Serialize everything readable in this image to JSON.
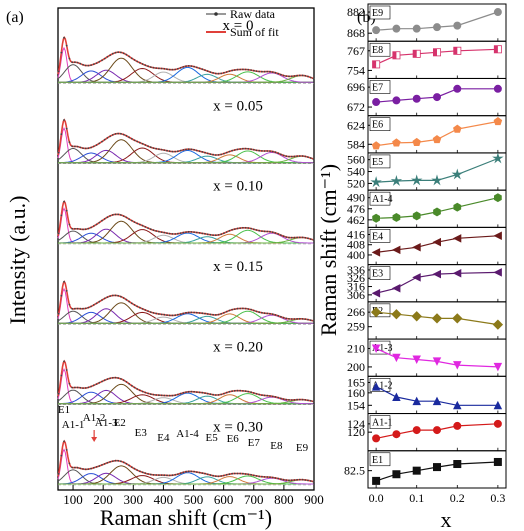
{
  "panel_a": {
    "label": "(a)",
    "ylabel": "Intensity (a.u.)",
    "xlabel": "Raman shift (cm⁻¹)",
    "xlim": [
      50,
      900
    ],
    "xticks": [
      100,
      200,
      300,
      400,
      500,
      600,
      700,
      800,
      900
    ],
    "legend": {
      "raw": "Raw data",
      "fit": "Sum of fit"
    },
    "spectra": [
      {
        "label": "x = 0"
      },
      {
        "label": "x = 0.05"
      },
      {
        "label": "x = 0.10"
      },
      {
        "label": "x = 0.15"
      },
      {
        "label": "x = 0.20"
      },
      {
        "label": "x = 0.30"
      }
    ],
    "mode_labels": [
      {
        "text": "E1",
        "x": 70
      },
      {
        "text": "A1-1",
        "x": 100
      },
      {
        "text": "A1-2",
        "x": 170
      },
      {
        "text": "A1-3",
        "x": 210
      },
      {
        "text": "E2",
        "x": 255
      },
      {
        "text": "E3",
        "x": 325
      },
      {
        "text": "E4",
        "x": 400
      },
      {
        "text": "A1-4",
        "x": 480
      },
      {
        "text": "E5",
        "x": 560
      },
      {
        "text": "E6",
        "x": 630
      },
      {
        "text": "E7",
        "x": 700
      },
      {
        "text": "E8",
        "x": 775
      },
      {
        "text": "E9",
        "x": 860
      }
    ]
  },
  "panel_b": {
    "label": "(b)",
    "ylabel": "Raman shift (cm⁻¹)",
    "xlabel": "x",
    "xticks": [
      "0.0",
      "0.1",
      "0.2",
      "0.3"
    ]
  },
  "chart_data": [
    {
      "type": "line",
      "panel": "a",
      "xlabel": "Raman shift (cm⁻¹)",
      "ylabel": "Intensity (a.u.)",
      "xlim": [
        50,
        900
      ],
      "series": [
        {
          "name": "Raw data"
        },
        {
          "name": "Sum of fit"
        }
      ],
      "offset_spectra": [
        "x = 0",
        "x = 0.05",
        "x = 0.10",
        "x = 0.15",
        "x = 0.20",
        "x = 0.30"
      ],
      "peak_centers": [
        70,
        100,
        160,
        210,
        260,
        330,
        400,
        480,
        545,
        620,
        680,
        760,
        860
      ]
    },
    {
      "type": "line",
      "panel": "b",
      "x": [
        0.0,
        0.05,
        0.1,
        0.15,
        0.2,
        0.3
      ],
      "xlabel": "x",
      "ylabel": "Raman shift (cm⁻¹)",
      "subplots": [
        {
          "name": "E9",
          "yticks": [
            868,
            882
          ],
          "ylim": [
            864,
            886
          ],
          "values": [
            870,
            871,
            871,
            872,
            873,
            882
          ],
          "color": "#8c8c8c",
          "marker": "circle"
        },
        {
          "name": "E8",
          "yticks": [
            754,
            767
          ],
          "ylim": [
            750,
            772
          ],
          "values": [
            758,
            764,
            765,
            766,
            767,
            768
          ],
          "color": "#d6336c",
          "marker": "half-square"
        },
        {
          "name": "E7",
          "yticks": [
            672,
            696
          ],
          "ylim": [
            664,
            704
          ],
          "values": [
            678,
            680,
            682,
            684,
            694,
            694
          ],
          "color": "#7a1fa2",
          "marker": "circle"
        },
        {
          "name": "E6",
          "yticks": [
            584,
            624
          ],
          "ylim": [
            570,
            640
          ],
          "values": [
            581,
            587,
            588,
            594,
            616,
            632
          ],
          "color": "#f4894a",
          "marker": "pentagon"
        },
        {
          "name": "E5",
          "yticks": [
            520,
            540,
            560
          ],
          "ylim": [
            512,
            568
          ],
          "values": [
            522,
            524,
            525,
            525,
            535,
            562
          ],
          "color": "#3b7f7a",
          "marker": "star"
        },
        {
          "name": "A1-4",
          "yticks": [
            462,
            476,
            490
          ],
          "ylim": [
            455,
            497
          ],
          "values": [
            464,
            465,
            467,
            472,
            478,
            490
          ],
          "color": "#4a8a2a",
          "marker": "hexagon"
        },
        {
          "name": "E4",
          "yticks": [
            400,
            408,
            416
          ],
          "ylim": [
            394,
            420
          ],
          "values": [
            402,
            404,
            406,
            410,
            413,
            415
          ],
          "color": "#6b1a1a",
          "marker": "triangle-left"
        },
        {
          "name": "E3",
          "yticks": [
            306,
            316,
            326,
            336
          ],
          "ylim": [
            300,
            340
          ],
          "values": [
            308,
            314,
            327,
            331,
            332,
            333
          ],
          "color": "#5a1a6e",
          "marker": "triangle-left"
        },
        {
          "name": "E2",
          "yticks": [
            259,
            266
          ],
          "ylim": [
            254,
            270
          ],
          "values": [
            266,
            265,
            264,
            263,
            263,
            260
          ],
          "color": "#8c7a1a",
          "marker": "diamond"
        },
        {
          "name": "A1-3",
          "yticks": [
            200,
            210
          ],
          "ylim": [
            196,
            214
          ],
          "values": [
            210,
            205,
            204,
            203,
            201,
            200
          ],
          "color": "#e028e0",
          "marker": "triangle-down"
        },
        {
          "name": "A1-2",
          "yticks": [
            154,
            160,
            165
          ],
          "ylim": [
            151,
            167
          ],
          "values": [
            163,
            158,
            156,
            156,
            154,
            154
          ],
          "color": "#1a2a9e",
          "marker": "triangle-up"
        },
        {
          "name": "A1-1",
          "yticks": [
            120,
            124
          ],
          "ylim": [
            112,
            128
          ],
          "values": [
            117,
            119,
            121,
            121,
            123,
            124
          ],
          "color": "#d41a1a",
          "marker": "circle"
        },
        {
          "name": "E1",
          "yticks": [
            82.5
          ],
          "ylim": [
            79.5,
            86
          ],
          "values": [
            80.5,
            81.8,
            82.5,
            83.2,
            83.8,
            84.2
          ],
          "color": "#111111",
          "marker": "square"
        }
      ]
    }
  ]
}
